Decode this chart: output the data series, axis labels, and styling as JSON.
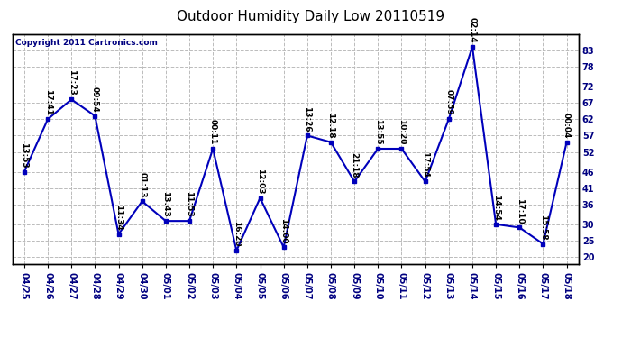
{
  "title": "Outdoor Humidity Daily Low 20110519",
  "copyright": "Copyright 2011 Cartronics.com",
  "x_labels": [
    "04/25",
    "04/26",
    "04/27",
    "04/28",
    "04/29",
    "04/30",
    "05/01",
    "05/02",
    "05/03",
    "05/04",
    "05/05",
    "05/06",
    "05/07",
    "05/08",
    "05/09",
    "05/10",
    "05/11",
    "05/12",
    "05/13",
    "05/14",
    "05/15",
    "05/16",
    "05/17",
    "05/18"
  ],
  "y_values": [
    46,
    62,
    68,
    63,
    27,
    37,
    31,
    31,
    53,
    22,
    38,
    23,
    57,
    55,
    43,
    53,
    53,
    43,
    62,
    84,
    30,
    29,
    24,
    55
  ],
  "time_labels": [
    "13:53",
    "17:41",
    "17:23",
    "09:54",
    "11:34",
    "01:13",
    "13:43",
    "11:53",
    "00:11",
    "16:20",
    "12:03",
    "14:00",
    "13:26",
    "12:18",
    "21:18",
    "13:55",
    "10:20",
    "17:54",
    "07:59",
    "02:14",
    "14:54",
    "17:10",
    "15:58",
    "00:04"
  ],
  "line_color": "#0000bb",
  "marker_color": "#0000bb",
  "background_color": "#ffffff",
  "grid_color": "#bbbbbb",
  "y_ticks": [
    20,
    25,
    30,
    36,
    41,
    46,
    52,
    57,
    62,
    67,
    72,
    78,
    83
  ],
  "ylim": [
    18,
    88
  ],
  "title_fontsize": 11,
  "label_fontsize": 6.5,
  "tick_fontsize": 7,
  "copyright_fontsize": 6.5
}
